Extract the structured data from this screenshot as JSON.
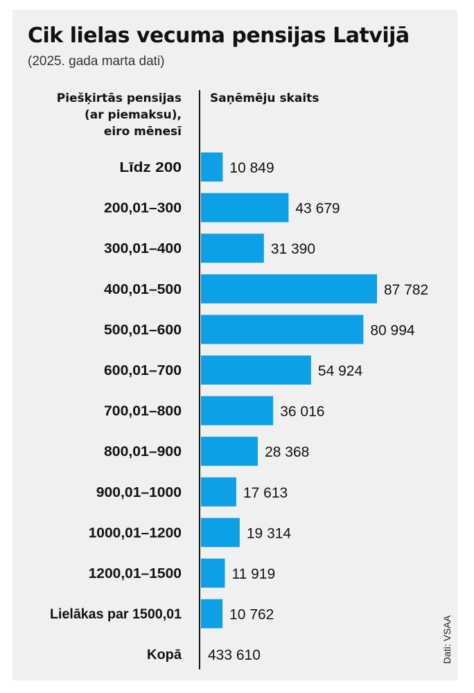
{
  "title": "Cik lielas vecuma pensijas Latvijā",
  "subtitle": "(2025. gada marta dati)",
  "left_header": [
    "Piešķirtās pensijas",
    "(ar piemaksu),",
    "eiro mēnesī"
  ],
  "right_header": "Saņēmēju skaits",
  "source": "Dati: VSAA",
  "colors": {
    "bar": "#0da0e6",
    "background": "#f0f0f0",
    "text": "#111111"
  },
  "chart_data": {
    "type": "bar",
    "orientation": "horizontal",
    "title": "Cik lielas vecuma pensijas Latvijā",
    "subtitle": "(2025. gada marta dati)",
    "categories": [
      "Līdz 200",
      "200,01–300",
      "300,01–400",
      "400,01–500",
      "500,01–600",
      "600,01–700",
      "700,01–800",
      "800,01–900",
      "900,01–1000",
      "1000,01–1200",
      "1200,01–1500",
      "Lielākas par 1500,01"
    ],
    "values": [
      10849,
      43679,
      31390,
      87782,
      80994,
      54924,
      36016,
      28368,
      17613,
      19314,
      11919,
      10762
    ],
    "value_labels": [
      "10 849",
      "43 679",
      "31 390",
      "87 782",
      "80 994",
      "54 924",
      "36 016",
      "28 368",
      "17 613",
      "19 314",
      "11 919",
      "10 762"
    ],
    "total_label": "Kopā",
    "total_value": 433610,
    "total_value_label": "433 610",
    "xlim": [
      0,
      87782
    ],
    "grid": false,
    "legend": "none"
  }
}
